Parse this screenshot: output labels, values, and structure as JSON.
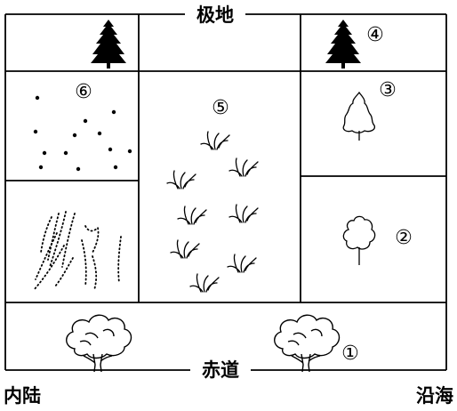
{
  "labels": {
    "top": "极地",
    "bottom": "赤道",
    "left": "内陆",
    "right": "沿海"
  },
  "zones": [
    {
      "id": "1",
      "marker": "①",
      "icon": "broadleaf-tree-icon"
    },
    {
      "id": "2",
      "marker": "②",
      "icon": "small-deciduous-tree-icon"
    },
    {
      "id": "3",
      "marker": "③",
      "icon": "outline-conifer-tree-icon"
    },
    {
      "id": "4",
      "marker": "④",
      "icon": "dark-conifer-tree-icon"
    },
    {
      "id": "5",
      "marker": "⑤",
      "icon": "grass-tuft-icon"
    },
    {
      "id": "6",
      "marker": "⑥",
      "icon": "sparse-dots-icon"
    }
  ]
}
